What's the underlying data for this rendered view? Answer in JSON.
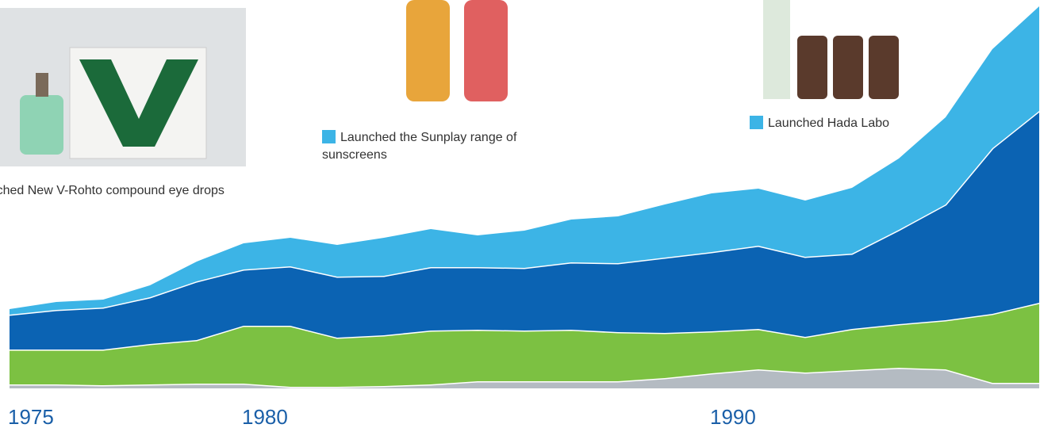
{
  "chart_data": {
    "type": "stacked_area",
    "x": [
      1975,
      1976,
      1977,
      1978,
      1979,
      1980,
      1981,
      1982,
      1983,
      1984,
      1985,
      1986,
      1987,
      1988,
      1989,
      1990,
      1991,
      1992,
      1993,
      1994,
      1995,
      1996,
      1997
    ],
    "xlim": [
      1975,
      1997
    ],
    "xticks": [
      1975,
      1980,
      1990
    ],
    "ylim": [
      0,
      500
    ],
    "series": [
      {
        "color": "#b4bbc2",
        "values": [
          5,
          5,
          4,
          5,
          6,
          6,
          2,
          2,
          3,
          5,
          9,
          9,
          9,
          9,
          13,
          19,
          24,
          20,
          23,
          26,
          24,
          7,
          7
        ]
      },
      {
        "color": "#7cc142",
        "values": [
          44,
          44,
          45,
          51,
          55,
          73,
          77,
          62,
          64,
          68,
          65,
          64,
          65,
          62,
          57,
          53,
          51,
          45,
          52,
          55,
          62,
          87,
          101
        ]
      },
      {
        "color": "#0b63b3",
        "values": [
          44,
          50,
          53,
          59,
          74,
          71,
          75,
          77,
          75,
          80,
          79,
          79,
          85,
          87,
          95,
          100,
          105,
          101,
          95,
          119,
          146,
          209,
          242
        ]
      },
      {
        "color": "#3cb4e6",
        "values": [
          7,
          10,
          10,
          15,
          25,
          33,
          36,
          40,
          48,
          48,
          40,
          47,
          54,
          59,
          67,
          74,
          72,
          71,
          83,
          90,
          110,
          125,
          132
        ]
      }
    ],
    "annotations": [
      "Launched New V-Rohto compound eye drops",
      "Launched the Sunplay range of sunscreens",
      "Launched Hada Labo"
    ]
  }
}
